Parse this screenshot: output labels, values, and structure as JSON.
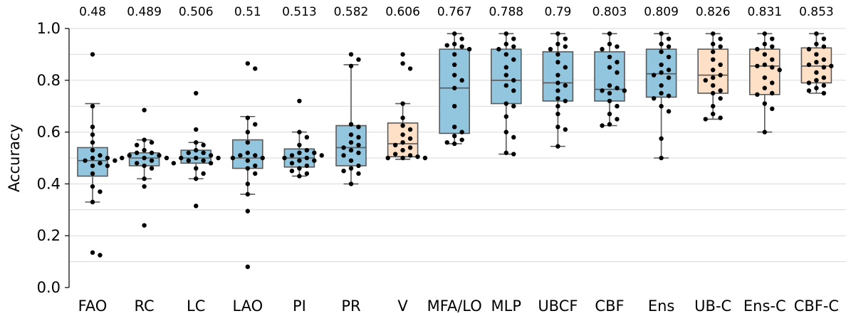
{
  "chart_data": {
    "type": "box",
    "ylabel": "Accuracy",
    "xlabel": "",
    "ylim": [
      0,
      1
    ],
    "yticks": [
      "0.0",
      "0.2",
      "0.4",
      "0.6",
      "0.8",
      "1.0"
    ],
    "grid": "horizontal",
    "colors": {
      "blue": "#92c5de",
      "orange": "#fde0c5",
      "edge": "#595959",
      "grid": "#d9d9d9",
      "point": "#000000"
    },
    "categories": [
      {
        "label": "FAO",
        "mean": "0.48",
        "color": "blue",
        "box": {
          "q1": 0.43,
          "median": 0.49,
          "q3": 0.54,
          "whisker_low": 0.33,
          "whisker_high": 0.71
        },
        "points": [
          0.9,
          0.7,
          0.62,
          0.59,
          0.56,
          0.53,
          0.51,
          0.5,
          0.5,
          0.49,
          0.49,
          0.48,
          0.47,
          0.47,
          0.44,
          0.39,
          0.37,
          0.33,
          0.135,
          0.125
        ]
      },
      {
        "label": "RC",
        "mean": "0.489",
        "color": "blue",
        "box": {
          "q1": 0.47,
          "median": 0.5,
          "q3": 0.52,
          "whisker_low": 0.42,
          "whisker_high": 0.57
        },
        "points": [
          0.685,
          0.57,
          0.56,
          0.55,
          0.53,
          0.52,
          0.52,
          0.51,
          0.51,
          0.5,
          0.5,
          0.5,
          0.49,
          0.48,
          0.47,
          0.46,
          0.42,
          0.39,
          0.24
        ]
      },
      {
        "label": "LC",
        "mean": "0.506",
        "color": "blue",
        "box": {
          "q1": 0.48,
          "median": 0.5,
          "q3": 0.53,
          "whisker_low": 0.42,
          "whisker_high": 0.56
        },
        "points": [
          0.75,
          0.61,
          0.56,
          0.55,
          0.53,
          0.52,
          0.52,
          0.51,
          0.5,
          0.5,
          0.5,
          0.49,
          0.49,
          0.48,
          0.48,
          0.46,
          0.44,
          0.42,
          0.315
        ]
      },
      {
        "label": "LAO",
        "mean": "0.51",
        "color": "blue",
        "box": {
          "q1": 0.46,
          "median": 0.5,
          "q3": 0.57,
          "whisker_low": 0.36,
          "whisker_high": 0.66
        },
        "points": [
          0.865,
          0.845,
          0.655,
          0.63,
          0.6,
          0.56,
          0.52,
          0.51,
          0.51,
          0.5,
          0.5,
          0.49,
          0.47,
          0.46,
          0.44,
          0.4,
          0.36,
          0.295,
          0.08
        ]
      },
      {
        "label": "PI",
        "mean": "0.513",
        "color": "blue",
        "box": {
          "q1": 0.465,
          "median": 0.5,
          "q3": 0.535,
          "whisker_low": 0.43,
          "whisker_high": 0.6
        },
        "points": [
          0.72,
          0.6,
          0.58,
          0.55,
          0.53,
          0.52,
          0.52,
          0.51,
          0.51,
          0.5,
          0.5,
          0.49,
          0.49,
          0.48,
          0.47,
          0.46,
          0.45,
          0.44,
          0.43
        ]
      },
      {
        "label": "PR",
        "mean": "0.582",
        "color": "blue",
        "box": {
          "q1": 0.47,
          "median": 0.54,
          "q3": 0.625,
          "whisker_low": 0.4,
          "whisker_high": 0.86
        },
        "points": [
          0.9,
          0.88,
          0.855,
          0.63,
          0.62,
          0.59,
          0.58,
          0.56,
          0.55,
          0.54,
          0.53,
          0.52,
          0.51,
          0.49,
          0.47,
          0.46,
          0.45,
          0.44,
          0.4
        ]
      },
      {
        "label": "V",
        "mean": "0.606",
        "color": "orange",
        "box": {
          "q1": 0.505,
          "median": 0.555,
          "q3": 0.635,
          "whisker_low": 0.495,
          "whisker_high": 0.71
        },
        "points": [
          0.9,
          0.865,
          0.845,
          0.71,
          0.655,
          0.625,
          0.61,
          0.59,
          0.575,
          0.56,
          0.55,
          0.54,
          0.53,
          0.515,
          0.51,
          0.505,
          0.5,
          0.5,
          0.5
        ]
      },
      {
        "label": "MFA/LO",
        "mean": "0.767",
        "color": "blue",
        "box": {
          "q1": 0.595,
          "median": 0.77,
          "q3": 0.92,
          "whisker_low": 0.555,
          "whisker_high": 0.98
        },
        "points": [
          0.98,
          0.96,
          0.94,
          0.935,
          0.93,
          0.92,
          0.9,
          0.86,
          0.82,
          0.8,
          0.77,
          0.7,
          0.62,
          0.6,
          0.585,
          0.57,
          0.56,
          0.555
        ]
      },
      {
        "label": "MLP",
        "mean": "0.788",
        "color": "blue",
        "box": {
          "q1": 0.71,
          "median": 0.8,
          "q3": 0.92,
          "whisker_low": 0.515,
          "whisker_high": 0.98
        },
        "points": [
          0.98,
          0.96,
          0.94,
          0.93,
          0.92,
          0.9,
          0.88,
          0.85,
          0.82,
          0.8,
          0.78,
          0.76,
          0.71,
          0.7,
          0.66,
          0.6,
          0.58,
          0.52,
          0.515
        ]
      },
      {
        "label": "UBCF",
        "mean": "0.79",
        "color": "blue",
        "box": {
          "q1": 0.72,
          "median": 0.79,
          "q3": 0.91,
          "whisker_low": 0.545,
          "whisker_high": 0.98
        },
        "points": [
          0.98,
          0.96,
          0.94,
          0.93,
          0.92,
          0.9,
          0.87,
          0.85,
          0.82,
          0.79,
          0.78,
          0.76,
          0.73,
          0.72,
          0.7,
          0.67,
          0.62,
          0.61,
          0.545
        ]
      },
      {
        "label": "CBF",
        "mean": "0.803",
        "color": "blue",
        "box": {
          "q1": 0.72,
          "median": 0.765,
          "q3": 0.91,
          "whisker_low": 0.625,
          "whisker_high": 0.98
        },
        "points": [
          0.98,
          0.94,
          0.93,
          0.92,
          0.89,
          0.87,
          0.85,
          0.83,
          0.78,
          0.77,
          0.76,
          0.76,
          0.75,
          0.72,
          0.7,
          0.67,
          0.65,
          0.63,
          0.625
        ]
      },
      {
        "label": "Ens",
        "mean": "0.809",
        "color": "blue",
        "box": {
          "q1": 0.735,
          "median": 0.825,
          "q3": 0.92,
          "whisker_low": 0.5,
          "whisker_high": 0.98
        },
        "points": [
          0.98,
          0.96,
          0.94,
          0.93,
          0.91,
          0.89,
          0.86,
          0.84,
          0.83,
          0.82,
          0.81,
          0.78,
          0.75,
          0.74,
          0.73,
          0.7,
          0.68,
          0.575,
          0.5
        ]
      },
      {
        "label": "UB-C",
        "mean": "0.826",
        "color": "orange",
        "box": {
          "q1": 0.75,
          "median": 0.82,
          "q3": 0.92,
          "whisker_low": 0.65,
          "whisker_high": 0.98
        },
        "points": [
          0.98,
          0.96,
          0.94,
          0.93,
          0.91,
          0.88,
          0.86,
          0.84,
          0.82,
          0.81,
          0.8,
          0.78,
          0.76,
          0.75,
          0.73,
          0.7,
          0.67,
          0.655,
          0.65
        ]
      },
      {
        "label": "Ens-C",
        "mean": "0.831",
        "color": "orange",
        "box": {
          "q1": 0.745,
          "median": 0.855,
          "q3": 0.92,
          "whisker_low": 0.6,
          "whisker_high": 0.98
        },
        "points": [
          0.98,
          0.96,
          0.94,
          0.93,
          0.92,
          0.9,
          0.88,
          0.86,
          0.855,
          0.85,
          0.84,
          0.81,
          0.79,
          0.77,
          0.75,
          0.745,
          0.71,
          0.69,
          0.6
        ]
      },
      {
        "label": "CBF-C",
        "mean": "0.853",
        "color": "orange",
        "box": {
          "q1": 0.79,
          "median": 0.855,
          "q3": 0.925,
          "whisker_low": 0.75,
          "whisker_high": 0.98
        },
        "points": [
          0.98,
          0.96,
          0.94,
          0.93,
          0.92,
          0.9,
          0.88,
          0.87,
          0.86,
          0.855,
          0.85,
          0.83,
          0.81,
          0.8,
          0.79,
          0.78,
          0.77,
          0.76,
          0.75
        ]
      }
    ]
  }
}
